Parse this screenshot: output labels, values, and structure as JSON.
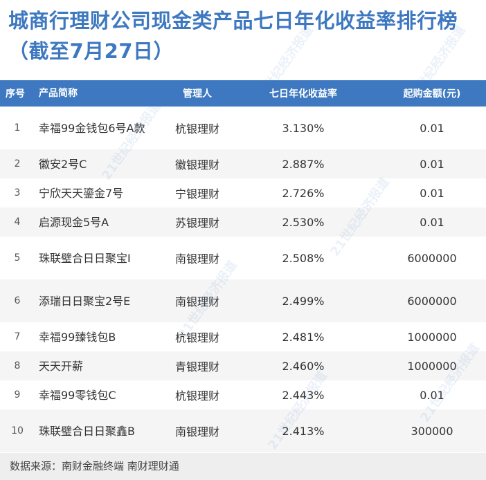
{
  "title": "城商行理财公司现金类产品七日年化收益率排行榜（截至7月27日）",
  "table": {
    "headers": [
      "序号",
      "产品简称",
      "管理人",
      "七日年化收益率",
      "起购金额(元)"
    ],
    "rows": [
      {
        "idx": "1",
        "name": "幸福99金钱包6号A款",
        "manager": "杭银理财",
        "rate": "3.130%",
        "min": "0.01"
      },
      {
        "idx": "2",
        "name": "徽安2号C",
        "manager": "徽银理财",
        "rate": "2.887%",
        "min": "0.01"
      },
      {
        "idx": "3",
        "name": "宁欣天天鎏金7号",
        "manager": "宁银理财",
        "rate": "2.726%",
        "min": "0.01"
      },
      {
        "idx": "4",
        "name": "启源现金5号A",
        "manager": "苏银理财",
        "rate": "2.530%",
        "min": "0.01"
      },
      {
        "idx": "5",
        "name": "珠联璧合日日聚宝I",
        "manager": "南银理财",
        "rate": "2.508%",
        "min": "6000000"
      },
      {
        "idx": "6",
        "name": "添瑞日日聚宝2号E",
        "manager": "南银理财",
        "rate": "2.499%",
        "min": "6000000"
      },
      {
        "idx": "7",
        "name": "幸福99臻钱包B",
        "manager": "杭银理财",
        "rate": "2.481%",
        "min": "1000000"
      },
      {
        "idx": "8",
        "name": "天天开薪",
        "manager": "青银理财",
        "rate": "2.460%",
        "min": "1000000"
      },
      {
        "idx": "9",
        "name": "幸福99零钱包C",
        "manager": "杭银理财",
        "rate": "2.443%",
        "min": "0.01"
      },
      {
        "idx": "10",
        "name": "珠联璧合日日聚鑫B",
        "manager": "南银理财",
        "rate": "2.413%",
        "min": "300000"
      }
    ]
  },
  "footer": "数据来源：南财金融终端 南财理财通",
  "watermark": "21世纪经济报道",
  "colors": {
    "accent": "#3d78c0",
    "row_alt": "#f5f5f5",
    "footer_bg": "#eeeeee"
  }
}
